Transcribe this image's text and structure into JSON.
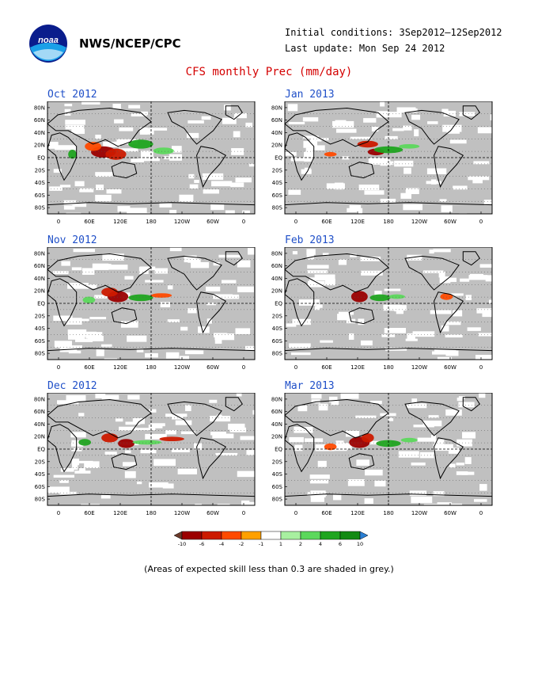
{
  "header": {
    "org": "NWS/NCEP/CPC",
    "initial_conditions": "Initial conditions: 3Sep2012–12Sep2012",
    "last_update": "Last update: Mon Sep 24 2012",
    "title": "CFS monthly Prec (mm/day)",
    "logo_text": "noaa"
  },
  "axes": {
    "lat_labels": [
      "80N",
      "60N",
      "40N",
      "20N",
      "EQ",
      "20S",
      "40S",
      "60S",
      "80S"
    ],
    "lon_labels": [
      "0",
      "60E",
      "120E",
      "180",
      "120W",
      "60W",
      "0"
    ]
  },
  "panels": [
    {
      "title": "Oct 2012"
    },
    {
      "title": "Jan 2013"
    },
    {
      "title": "Nov 2012"
    },
    {
      "title": "Feb 2013"
    },
    {
      "title": "Dec 2012"
    },
    {
      "title": "Mar 2013"
    }
  ],
  "colorbar": {
    "levels": [
      "-10",
      "-6",
      "-4",
      "-2",
      "-1",
      "1",
      "2",
      "4",
      "6",
      "10"
    ],
    "colors": [
      "#6b3a2a",
      "#9b0000",
      "#cc1a00",
      "#ff4a00",
      "#ffa000",
      "#ffffff",
      "#a8f0a0",
      "#5cd85c",
      "#1fa51f",
      "#138a13",
      "#2a7fd4"
    ]
  },
  "colors": {
    "title": "#d40000",
    "panel_title": "#1f4fc8",
    "low_skill_grey": "#c0c0c0"
  },
  "note": "(Areas of expected skill less than 0.3 are shaded in grey.)"
}
